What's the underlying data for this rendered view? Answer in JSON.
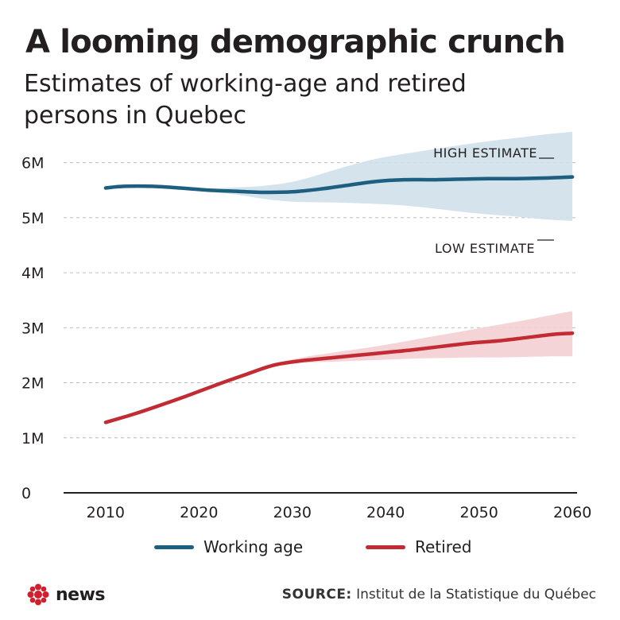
{
  "title": "A looming demographic crunch",
  "subtitle": "Estimates of working-age and retired persons in Quebec",
  "annotations": {
    "high": "HIGH ESTIMATE",
    "low": "LOW ESTIMATE"
  },
  "colors": {
    "working": "#1d5f80",
    "working_band": "#cfe0ea",
    "retired": "#c22b33",
    "retired_band": "#f3cfd1",
    "grid": "#bbbbbb",
    "axis": "#231f20"
  },
  "legend": {
    "working": "Working age",
    "retired": "Retired"
  },
  "source": {
    "label": "SOURCE:",
    "text": "Institut de la Statistique du Québec"
  },
  "logo": {
    "text": "news",
    "icon": "cbc-gem-icon"
  },
  "chart_data": {
    "type": "area",
    "xlim": [
      2005.5,
      2060.5
    ],
    "ylim": [
      0,
      6.5
    ],
    "x_ticks": [
      2010,
      2020,
      2030,
      2040,
      2050,
      2060
    ],
    "y_ticks": [
      0,
      1,
      2,
      3,
      4,
      5,
      6
    ],
    "y_tick_labels": [
      "0",
      "1M",
      "2M",
      "3M",
      "4M",
      "5M",
      "6M"
    ],
    "grid": true,
    "legend_position": "bottom",
    "series": [
      {
        "name": "Working age",
        "x": [
          2010,
          2012,
          2015,
          2018,
          2021,
          2024,
          2027,
          2030,
          2033,
          2036,
          2039,
          2042,
          2045,
          2048,
          2051,
          2054,
          2057,
          2060
        ],
        "y": [
          5.54,
          5.57,
          5.57,
          5.54,
          5.5,
          5.48,
          5.46,
          5.47,
          5.52,
          5.59,
          5.66,
          5.69,
          5.69,
          5.7,
          5.71,
          5.71,
          5.72,
          5.74
        ],
        "low": [
          5.54,
          5.57,
          5.57,
          5.54,
          5.48,
          5.42,
          5.34,
          5.29,
          5.28,
          5.27,
          5.25,
          5.22,
          5.17,
          5.11,
          5.06,
          5.02,
          4.97,
          4.94
        ],
        "high": [
          5.54,
          5.57,
          5.57,
          5.55,
          5.53,
          5.55,
          5.58,
          5.65,
          5.79,
          5.94,
          6.07,
          6.16,
          6.24,
          6.32,
          6.39,
          6.45,
          6.51,
          6.56
        ]
      },
      {
        "name": "Retired",
        "x": [
          2010,
          2013,
          2016,
          2019,
          2022,
          2025,
          2028,
          2031,
          2034,
          2037,
          2040,
          2043,
          2046,
          2049,
          2052,
          2055,
          2058,
          2060
        ],
        "y": [
          1.28,
          1.43,
          1.6,
          1.78,
          1.97,
          2.15,
          2.32,
          2.4,
          2.45,
          2.5,
          2.55,
          2.6,
          2.66,
          2.72,
          2.76,
          2.82,
          2.88,
          2.9
        ],
        "low": [
          1.28,
          1.43,
          1.6,
          1.78,
          1.97,
          2.15,
          2.3,
          2.36,
          2.38,
          2.4,
          2.42,
          2.44,
          2.45,
          2.46,
          2.46,
          2.47,
          2.48,
          2.48
        ],
        "high": [
          1.28,
          1.43,
          1.6,
          1.78,
          1.97,
          2.15,
          2.34,
          2.46,
          2.54,
          2.61,
          2.69,
          2.78,
          2.87,
          2.96,
          3.05,
          3.14,
          3.24,
          3.3
        ]
      }
    ]
  }
}
